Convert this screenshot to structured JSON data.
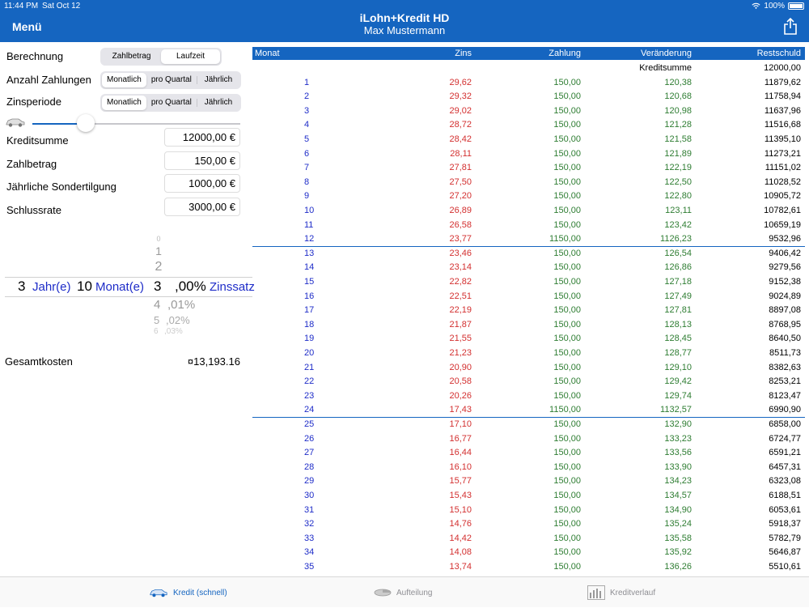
{
  "status": {
    "time": "11:44 PM",
    "date": "Sat Oct 12",
    "battery": "100%"
  },
  "nav": {
    "menu_label": "Menü",
    "title": "iLohn+Kredit HD",
    "subtitle": "Max Mustermann"
  },
  "form": {
    "berechnung": {
      "label": "Berechnung",
      "options": [
        "Zahlbetrag",
        "Laufzeit"
      ],
      "selected": 1
    },
    "anzahl": {
      "label": "Anzahl Zahlungen",
      "options": [
        "Monatlich",
        "pro Quartal",
        "Jährlich"
      ],
      "selected": 0
    },
    "zinsperiode": {
      "label": "Zinsperiode",
      "options": [
        "Monatlich",
        "pro Quartal",
        "Jährlich"
      ],
      "selected": 0
    },
    "slider_level": 0.25,
    "fields": [
      {
        "label": "Kreditsumme",
        "value": "12000,00 €"
      },
      {
        "label": "Zahlbetrag",
        "value": "150,00 €"
      },
      {
        "label": "Jährliche Sondertilgung",
        "value": "1000,00 €"
      },
      {
        "label": "Schlussrate",
        "value": "3000,00 €"
      }
    ]
  },
  "picker": {
    "years": "3",
    "years_unit": "Jahr(e)",
    "months": "10",
    "months_unit": "Monat(e)",
    "rate_int": "3",
    "rate_dec": ",00%",
    "rate_unit": "Zinssatz",
    "above": [
      "0",
      "1",
      "2"
    ],
    "below": [
      {
        "int": "4",
        "dec": ",01%"
      },
      {
        "int": "5",
        "dec": ",02%"
      },
      {
        "int": "6",
        "dec": ",03%"
      }
    ]
  },
  "total": {
    "label": "Gesamtkosten",
    "value": "¤13,193.16"
  },
  "table": {
    "headers": {
      "monat": "Monat",
      "zins": "Zins",
      "zahlung": "Zahlung",
      "veraenderung": "Veränderung",
      "restschuld": "Restschuld"
    },
    "initial": {
      "label": "Kreditsumme",
      "value": "12000,00"
    },
    "rows": [
      [
        "1",
        "29,62",
        "150,00",
        "120,38",
        "11879,62"
      ],
      [
        "2",
        "29,32",
        "150,00",
        "120,68",
        "11758,94"
      ],
      [
        "3",
        "29,02",
        "150,00",
        "120,98",
        "11637,96"
      ],
      [
        "4",
        "28,72",
        "150,00",
        "121,28",
        "11516,68"
      ],
      [
        "5",
        "28,42",
        "150,00",
        "121,58",
        "11395,10"
      ],
      [
        "6",
        "28,11",
        "150,00",
        "121,89",
        "11273,21"
      ],
      [
        "7",
        "27,81",
        "150,00",
        "122,19",
        "11151,02"
      ],
      [
        "8",
        "27,50",
        "150,00",
        "122,50",
        "11028,52"
      ],
      [
        "9",
        "27,20",
        "150,00",
        "122,80",
        "10905,72"
      ],
      [
        "10",
        "26,89",
        "150,00",
        "123,11",
        "10782,61"
      ],
      [
        "11",
        "26,58",
        "150,00",
        "123,42",
        "10659,19"
      ],
      [
        "12",
        "23,77",
        "1150,00",
        "1126,23",
        "9532,96"
      ],
      [
        "13",
        "23,46",
        "150,00",
        "126,54",
        "9406,42"
      ],
      [
        "14",
        "23,14",
        "150,00",
        "126,86",
        "9279,56"
      ],
      [
        "15",
        "22,82",
        "150,00",
        "127,18",
        "9152,38"
      ],
      [
        "16",
        "22,51",
        "150,00",
        "127,49",
        "9024,89"
      ],
      [
        "17",
        "22,19",
        "150,00",
        "127,81",
        "8897,08"
      ],
      [
        "18",
        "21,87",
        "150,00",
        "128,13",
        "8768,95"
      ],
      [
        "19",
        "21,55",
        "150,00",
        "128,45",
        "8640,50"
      ],
      [
        "20",
        "21,23",
        "150,00",
        "128,77",
        "8511,73"
      ],
      [
        "21",
        "20,90",
        "150,00",
        "129,10",
        "8382,63"
      ],
      [
        "22",
        "20,58",
        "150,00",
        "129,42",
        "8253,21"
      ],
      [
        "23",
        "20,26",
        "150,00",
        "129,74",
        "8123,47"
      ],
      [
        "24",
        "17,43",
        "1150,00",
        "1132,57",
        "6990,90"
      ],
      [
        "25",
        "17,10",
        "150,00",
        "132,90",
        "6858,00"
      ],
      [
        "26",
        "16,77",
        "150,00",
        "133,23",
        "6724,77"
      ],
      [
        "27",
        "16,44",
        "150,00",
        "133,56",
        "6591,21"
      ],
      [
        "28",
        "16,10",
        "150,00",
        "133,90",
        "6457,31"
      ],
      [
        "29",
        "15,77",
        "150,00",
        "134,23",
        "6323,08"
      ],
      [
        "30",
        "15,43",
        "150,00",
        "134,57",
        "6188,51"
      ],
      [
        "31",
        "15,10",
        "150,00",
        "134,90",
        "6053,61"
      ],
      [
        "32",
        "14,76",
        "150,00",
        "135,24",
        "5918,37"
      ],
      [
        "33",
        "14,42",
        "150,00",
        "135,58",
        "5782,79"
      ],
      [
        "34",
        "14,08",
        "150,00",
        "135,92",
        "5646,87"
      ],
      [
        "35",
        "13,74",
        "150,00",
        "136,26",
        "5510,61"
      ]
    ]
  },
  "tabs": [
    {
      "label": "Kredit (schnell)",
      "icon": "car-icon",
      "active": true
    },
    {
      "label": "Aufteilung",
      "icon": "pie-icon",
      "active": false
    },
    {
      "label": "Kreditverlauf",
      "icon": "bar-chart-icon",
      "active": false
    }
  ],
  "colors": {
    "accent": "#1565c0",
    "zins": "#d32f2f",
    "zahlung": "#2e7d32",
    "monat": "#1e2cc8"
  }
}
